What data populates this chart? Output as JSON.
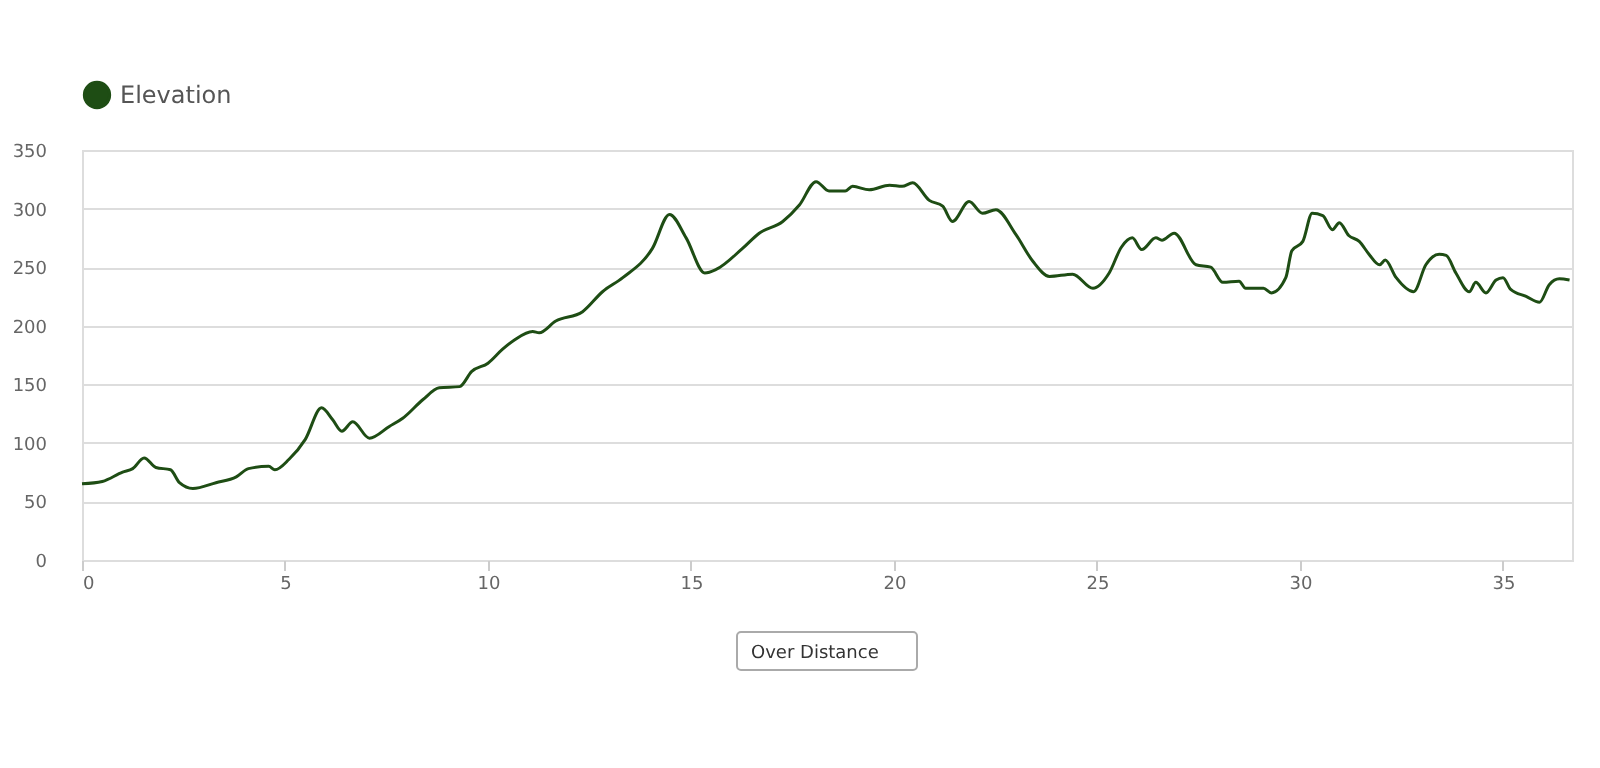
{
  "chart_data": {
    "type": "line",
    "series": [
      {
        "name": "Elevation",
        "color": "#1e4d14",
        "x": [
          0,
          0.5,
          1.0,
          1.25,
          1.53,
          1.82,
          2.18,
          2.4,
          2.73,
          3.3,
          3.8,
          4.1,
          4.6,
          4.75,
          5.1,
          5.5,
          5.9,
          6.17,
          6.4,
          6.67,
          7.08,
          7.57,
          7.9,
          8.4,
          8.8,
          9.3,
          9.6,
          10.0,
          10.36,
          10.66,
          11.1,
          11.26,
          11.67,
          12.33,
          12.82,
          13.32,
          14.05,
          14.47,
          14.88,
          15.34,
          15.62,
          16.27,
          16.68,
          17.26,
          17.67,
          18.08,
          18.4,
          18.8,
          18.98,
          19.39,
          19.89,
          20.2,
          20.46,
          20.87,
          21.2,
          21.44,
          21.85,
          22.18,
          22.51,
          23.0,
          23.42,
          23.83,
          24.4,
          24.9,
          25.3,
          25.6,
          25.87,
          26.1,
          26.45,
          26.6,
          26.9,
          27.44,
          27.8,
          28.1,
          28.5,
          28.66,
          29.1,
          29.3,
          29.65,
          29.8,
          30.07,
          30.3,
          30.56,
          30.8,
          30.97,
          31.2,
          31.46,
          31.7,
          31.96,
          32.1,
          32.37,
          32.8,
          33.1,
          33.43,
          33.6,
          33.84,
          34.17,
          34.33,
          34.58,
          34.83,
          35.0,
          35.19,
          35.57,
          35.9,
          36.14,
          36.39,
          36.64
        ],
        "values": [
          65,
          67,
          75,
          78,
          87,
          79,
          77,
          66,
          61,
          66,
          71,
          78,
          80,
          77,
          86,
          103,
          130,
          120,
          110,
          118,
          104,
          114,
          121,
          137,
          147,
          148,
          161,
          168,
          180,
          188,
          195,
          194,
          204,
          212,
          229,
          241,
          266,
          295,
          275,
          245,
          248,
          266,
          279,
          289,
          303,
          323,
          315,
          315,
          319,
          316,
          320,
          319,
          322,
          307,
          302,
          289,
          306,
          296,
          299,
          278,
          255,
          242,
          244,
          232,
          245,
          267,
          275,
          265,
          275,
          273,
          279,
          252,
          250,
          237,
          238,
          232,
          232,
          228,
          241,
          264,
          272,
          296,
          294,
          282,
          288,
          277,
          272,
          261,
          252,
          256,
          241,
          229,
          252,
          261,
          260,
          245,
          229,
          237,
          228,
          239,
          241,
          231,
          225,
          220,
          235,
          240,
          239
        ]
      }
    ],
    "xlim": [
      0,
      36.7
    ],
    "xticks": [
      0,
      5,
      10,
      15,
      20,
      25,
      30,
      35
    ],
    "ylim": [
      0,
      350
    ],
    "yticks": [
      0,
      50,
      100,
      150,
      200,
      250,
      300,
      350
    ],
    "grid": "y",
    "legend": "top left",
    "annotations": [
      "Over Distance"
    ]
  }
}
